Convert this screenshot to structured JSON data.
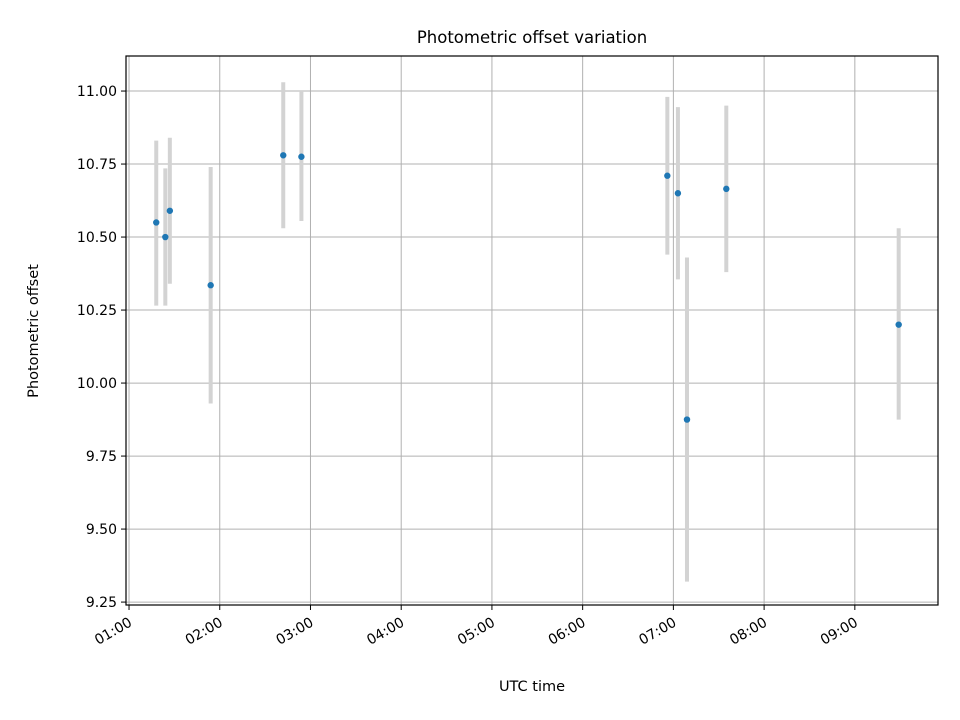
{
  "chart_data": {
    "type": "scatter",
    "title": "Photometric offset variation",
    "xlabel": "UTC time",
    "ylabel": "Photometric offset",
    "x_ticks": [
      "01:00",
      "02:00",
      "03:00",
      "04:00",
      "05:00",
      "06:00",
      "07:00",
      "08:00",
      "09:00"
    ],
    "y_ticks": [
      "9.25",
      "9.50",
      "9.75",
      "10.00",
      "10.25",
      "10.50",
      "10.75",
      "11.00"
    ],
    "xlim": [
      "00:58",
      "09:55"
    ],
    "ylim": [
      9.24,
      11.12
    ],
    "grid": true,
    "marker_color": "#1f77b4",
    "errorbar_color": "#d3d3d3",
    "points": [
      {
        "time": "01:18",
        "y": 10.55,
        "ylow": 10.265,
        "yhigh": 10.83
      },
      {
        "time": "01:24",
        "y": 10.5,
        "ylow": 10.265,
        "yhigh": 10.735
      },
      {
        "time": "01:27",
        "y": 10.59,
        "ylow": 10.34,
        "yhigh": 10.84
      },
      {
        "time": "01:54",
        "y": 10.335,
        "ylow": 9.93,
        "yhigh": 10.74
      },
      {
        "time": "02:42",
        "y": 10.78,
        "ylow": 10.53,
        "yhigh": 11.03
      },
      {
        "time": "02:54",
        "y": 10.775,
        "ylow": 10.555,
        "yhigh": 11.0
      },
      {
        "time": "06:56",
        "y": 10.71,
        "ylow": 10.44,
        "yhigh": 10.98
      },
      {
        "time": "07:03",
        "y": 10.65,
        "ylow": 10.355,
        "yhigh": 10.945
      },
      {
        "time": "07:09",
        "y": 9.875,
        "ylow": 9.32,
        "yhigh": 10.43
      },
      {
        "time": "07:35",
        "y": 10.665,
        "ylow": 10.38,
        "yhigh": 10.95
      },
      {
        "time": "09:29",
        "y": 10.2,
        "ylow": 9.875,
        "yhigh": 10.53
      }
    ]
  }
}
